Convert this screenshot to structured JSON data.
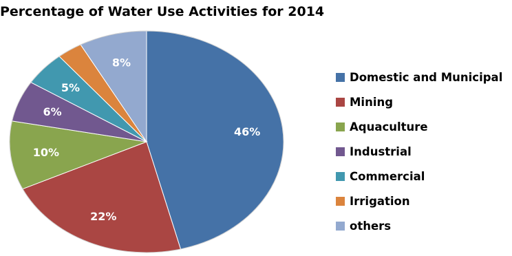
{
  "chart_data": {
    "type": "pie",
    "title": "Percentage of Water Use Activities for 2014",
    "legend_position": "right",
    "slices": [
      {
        "label": "Domestic and Municipal",
        "value": 46,
        "data_label": "46%",
        "color": "#4572A7"
      },
      {
        "label": "Mining",
        "value": 22,
        "data_label": "22%",
        "color": "#AA4643"
      },
      {
        "label": "Aquaculture",
        "value": 10,
        "data_label": "10%",
        "color": "#89A54E"
      },
      {
        "label": "Industrial",
        "value": 6,
        "data_label": "6%",
        "color": "#71588F"
      },
      {
        "label": "Commercial",
        "value": 5,
        "data_label": "5%",
        "color": "#4198AF"
      },
      {
        "label": "Irrigation",
        "value": 3,
        "data_label": "",
        "color": "#DB843D"
      },
      {
        "label": "others",
        "value": 8,
        "data_label": "8%",
        "color": "#93A9CF"
      }
    ]
  }
}
